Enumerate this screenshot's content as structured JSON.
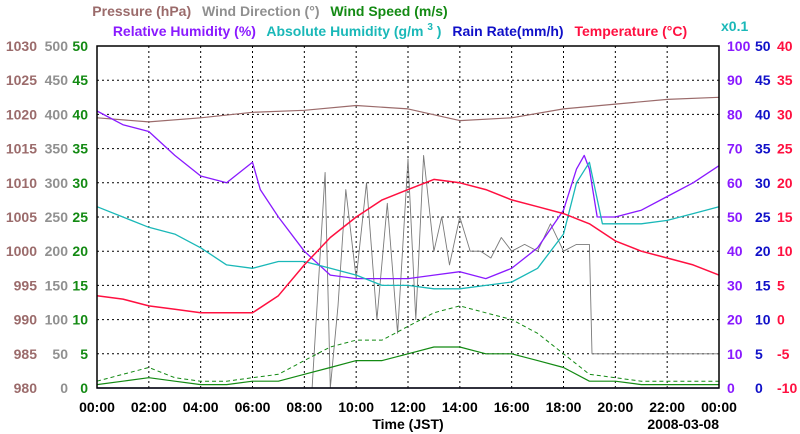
{
  "chart_data": {
    "type": "line",
    "date": "2008-03-08",
    "xlabel": "Time (JST)",
    "x_ticks": [
      "00:00",
      "02:00",
      "04:00",
      "06:00",
      "08:00",
      "10:00",
      "12:00",
      "14:00",
      "16:00",
      "18:00",
      "20:00",
      "22:00",
      "00:00"
    ],
    "x_range_hours": [
      0,
      24
    ],
    "grid": true,
    "legend_row1": [
      {
        "name": "Pressure (hPa)",
        "color": "#9b6b6b"
      },
      {
        "name": "Wind Direction (°)",
        "color": "#909090"
      },
      {
        "name": "Wind Speed (m/s)",
        "color": "#138a13"
      }
    ],
    "legend_row2": [
      {
        "name": "Relative Humidity (%)",
        "color": "#8a1aff"
      },
      {
        "name": "Absolute Humidity (g/m",
        "sup": "3",
        "close": ")",
        "color": "#1ab8b8"
      },
      {
        "name": "Rain Rate(mm/h)",
        "color": "#1010c8"
      },
      {
        "name": "Temperature (°C)",
        "color": "#ff1040"
      }
    ],
    "abs_humidity_scale_note": "x0.1",
    "axes": {
      "pressure": {
        "ticks": [
          "1030",
          "1025",
          "1020",
          "1015",
          "1010",
          "1005",
          "1000",
          "995",
          "990",
          "985",
          "980"
        ],
        "range": [
          980,
          1030
        ],
        "color": "#9b6b6b"
      },
      "wind_direction": {
        "ticks": [
          "500",
          "450",
          "400",
          "350",
          "300",
          "250",
          "200",
          "150",
          "100",
          "50",
          "0"
        ],
        "range": [
          0,
          500
        ],
        "color": "#909090"
      },
      "wind_speed": {
        "ticks": [
          "50",
          "45",
          "40",
          "35",
          "30",
          "25",
          "20",
          "15",
          "10",
          "5",
          "0"
        ],
        "range": [
          0,
          50
        ],
        "color": "#138a13"
      },
      "relative_humidity": {
        "ticks": [
          "100",
          "90",
          "80",
          "70",
          "60",
          "50",
          "40",
          "30",
          "20",
          "10",
          "0"
        ],
        "range": [
          0,
          100
        ],
        "color": "#8a1aff"
      },
      "rain_rate": {
        "ticks": [
          "50",
          "45",
          "40",
          "35",
          "30",
          "25",
          "20",
          "15",
          "10",
          "5",
          "0"
        ],
        "range": [
          0,
          50
        ],
        "color": "#1010c8"
      },
      "temperature": {
        "ticks": [
          "40",
          "35",
          "30",
          "25",
          "20",
          "15",
          "10",
          "5",
          "0",
          "-5",
          "-10"
        ],
        "range": [
          -10,
          40
        ],
        "color": "#ff1040"
      }
    },
    "series": [
      {
        "name": "Pressure",
        "unit": "hPa",
        "x": [
          0,
          2,
          4,
          6,
          8,
          10,
          12,
          14,
          16,
          18,
          20,
          22,
          24
        ],
        "values": [
          1019.5,
          1018.9,
          1019.5,
          1020.3,
          1020.6,
          1021.3,
          1020.8,
          1019.1,
          1019.5,
          1020.8,
          1021.5,
          1022.2,
          1022.5
        ]
      },
      {
        "name": "Wind Direction",
        "unit": "deg",
        "x": [
          0,
          6,
          8.3,
          8.8,
          9,
          9.3,
          9.6,
          10,
          10.4,
          10.8,
          11.2,
          11.6,
          12,
          12.3,
          12.6,
          13,
          13.3,
          13.6,
          14,
          14.4,
          14.8,
          15.2,
          15.6,
          16,
          16.5,
          17,
          17.5,
          18,
          18.5,
          19,
          19.1,
          24
        ],
        "values": [
          0,
          0,
          0,
          315,
          0,
          120,
          290,
          160,
          300,
          100,
          270,
          80,
          335,
          100,
          340,
          200,
          250,
          180,
          250,
          200,
          200,
          190,
          220,
          200,
          210,
          200,
          240,
          200,
          210,
          210,
          50,
          50
        ]
      },
      {
        "name": "Wind Speed",
        "unit": "m/s",
        "x": [
          0,
          1,
          2,
          3,
          4,
          5,
          6,
          7,
          8,
          9,
          10,
          11,
          12,
          13,
          14,
          15,
          16,
          17,
          18,
          19,
          20,
          21,
          22,
          23,
          24
        ],
        "values": [
          0.5,
          1,
          1.5,
          1,
          0.5,
          0.5,
          1,
          1,
          2,
          3,
          4,
          4,
          5,
          6,
          6,
          5,
          5,
          4,
          3,
          1,
          1,
          0.5,
          0.5,
          0.5,
          0.5
        ]
      },
      {
        "name": "Wind Speed Gust",
        "unit": "m/s",
        "x": [
          0,
          1,
          2,
          3,
          4,
          5,
          6,
          7,
          8,
          9,
          10,
          11,
          12,
          13,
          14,
          15,
          16,
          17,
          18,
          19,
          20,
          21,
          22,
          23,
          24
        ],
        "values": [
          1,
          2,
          3,
          1.5,
          1,
          1,
          1.5,
          2,
          4,
          6,
          7,
          7,
          9,
          11,
          12,
          11,
          10,
          8,
          5,
          2,
          1.5,
          1,
          1,
          1,
          1
        ]
      },
      {
        "name": "Relative Humidity",
        "unit": "%",
        "x": [
          0,
          1,
          2,
          3,
          4,
          5,
          6,
          6.3,
          7,
          8,
          9,
          10,
          11,
          12,
          13,
          14,
          15,
          16,
          17,
          18,
          18.5,
          18.8,
          19,
          19.3,
          20,
          21,
          22,
          23,
          24
        ],
        "values": [
          81,
          77,
          75,
          68,
          62,
          60,
          66,
          58,
          50,
          40,
          33,
          32,
          32,
          32,
          33,
          34,
          32,
          35,
          41,
          52,
          64,
          68,
          64,
          50,
          50,
          52,
          56,
          60,
          65
        ]
      },
      {
        "name": "Absolute Humidity",
        "unit": "g/m3 x0.1",
        "x": [
          0,
          1,
          2,
          3,
          4,
          5,
          6,
          7,
          8,
          9,
          10,
          11,
          12,
          13,
          14,
          15,
          16,
          17,
          18,
          18.5,
          19,
          19.5,
          20,
          21,
          22,
          23,
          24
        ],
        "values": [
          5.3,
          5.0,
          4.7,
          4.5,
          4.1,
          3.6,
          3.5,
          3.7,
          3.7,
          3.5,
          3.3,
          3.0,
          3.0,
          2.9,
          2.9,
          3.0,
          3.1,
          3.5,
          4.5,
          6.0,
          6.6,
          4.8,
          4.8,
          4.8,
          4.9,
          5.1,
          5.3
        ]
      },
      {
        "name": "Rain Rate",
        "unit": "mm/h",
        "x": [
          0,
          24
        ],
        "values": [
          0,
          0
        ]
      },
      {
        "name": "Temperature",
        "unit": "C",
        "x": [
          0,
          1,
          2,
          3,
          4,
          5,
          6,
          7,
          8,
          9,
          10,
          11,
          12,
          13,
          14,
          15,
          16,
          17,
          18,
          19,
          20,
          21,
          22,
          23,
          24
        ],
        "values": [
          3.5,
          3,
          2,
          1.5,
          1,
          1,
          1,
          3.5,
          8,
          12,
          15,
          17.5,
          19,
          20.5,
          20,
          19,
          17.5,
          16.5,
          15.5,
          14,
          11.5,
          10,
          9,
          8,
          6.5
        ]
      }
    ]
  }
}
